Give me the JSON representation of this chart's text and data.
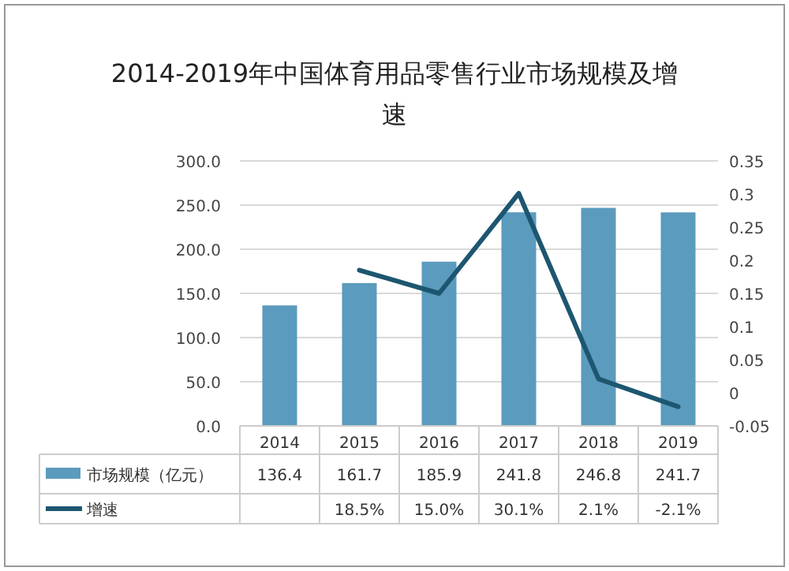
{
  "chart_data": {
    "type": "bar",
    "title": "2014-2019年中国体育用品零售行业市场规模及增速",
    "categories": [
      "2014",
      "2015",
      "2016",
      "2017",
      "2018",
      "2019"
    ],
    "series": [
      {
        "name": "市场规模（亿元）",
        "color": "#5b9bbd",
        "values": [
          136.4,
          161.7,
          185.9,
          241.8,
          246.8,
          241.7
        ],
        "data_labels": true
      },
      {
        "name": "增速",
        "type": "line",
        "axis": "y2",
        "color": "#1d5670",
        "values": [
          null,
          0.185,
          0.15,
          0.301,
          0.021,
          -0.021
        ],
        "value_labels": [
          null,
          "18.5%",
          "15.0%",
          "30.1%",
          "2.1%",
          "-2.1%"
        ]
      }
    ],
    "ylim": [
      0,
      300
    ],
    "yticks": [
      {
        "value": 0,
        "label": "0.0"
      },
      {
        "value": 50,
        "label": "50.0"
      },
      {
        "value": 100,
        "label": "100.0"
      },
      {
        "value": 150,
        "label": "150.0"
      },
      {
        "value": 200,
        "label": "200.0"
      },
      {
        "value": 250,
        "label": "250.0"
      },
      {
        "value": 300,
        "label": "300.0"
      }
    ],
    "y2lim": [
      -0.05,
      0.35
    ],
    "y2ticks": [
      -0.05,
      0,
      0.05,
      0.1,
      0.15,
      0.2,
      0.25,
      0.3,
      0.35
    ],
    "grid": "y",
    "legend": "bottom",
    "line_style": "solid",
    "marker": "none"
  }
}
